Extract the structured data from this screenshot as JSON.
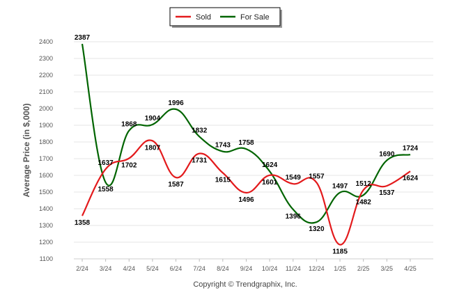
{
  "chart_data": {
    "type": "line",
    "title": "",
    "xlabel": "",
    "ylabel": "Average Price (in $,000)",
    "credit": "Copyright © Trendgraphix, Inc.",
    "categories": [
      "2/24",
      "3/24",
      "4/24",
      "5/24",
      "6/24",
      "7/24",
      "8/24",
      "9/24",
      "10/24",
      "11/24",
      "12/24",
      "1/25",
      "2/25",
      "3/25",
      "4/25"
    ],
    "ylim": [
      1100,
      2450
    ],
    "yticks": [
      1100,
      1200,
      1300,
      1400,
      1500,
      1600,
      1700,
      1800,
      1900,
      2000,
      2100,
      2200,
      2300,
      2400
    ],
    "grid": true,
    "legend": "top-center",
    "series": [
      {
        "name": "Sold",
        "color": "#e31a1c",
        "values": [
          1358,
          1637,
          1702,
          1807,
          1587,
          1731,
          1615,
          1496,
          1601,
          1549,
          1557,
          1185,
          1512,
          1537,
          1624
        ]
      },
      {
        "name": "For Sale",
        "color": "#006400",
        "values": [
          2387,
          1558,
          1868,
          1904,
          1996,
          1832,
          1743,
          1758,
          1624,
          1396,
          1320,
          1497,
          1482,
          1690,
          1724
        ]
      }
    ]
  }
}
